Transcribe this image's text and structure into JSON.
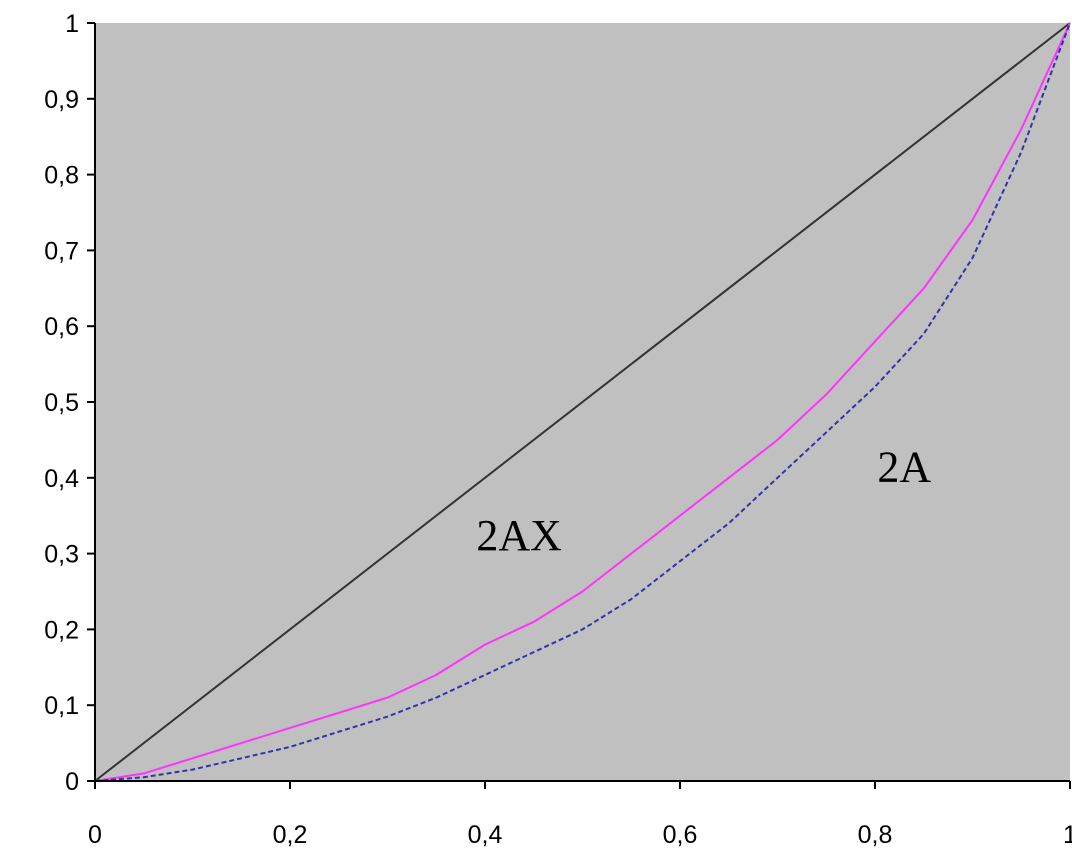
{
  "chart_data": {
    "type": "line",
    "title": "",
    "xlabel": "",
    "ylabel": "",
    "xlim": [
      0,
      1
    ],
    "ylim": [
      0,
      1
    ],
    "x_ticks": [
      "0",
      "0,2",
      "0,4",
      "0,6",
      "0,8",
      "1"
    ],
    "y_ticks": [
      "0",
      "0,1",
      "0,2",
      "0,3",
      "0,4",
      "0,5",
      "0,6",
      "0,7",
      "0,8",
      "0,9",
      "1"
    ],
    "grid": false,
    "legend": "none",
    "background_color": "#c0c0c0",
    "series": [
      {
        "color": "#333333",
        "style": "solid",
        "points": [
          [
            0,
            0
          ],
          [
            1,
            1
          ]
        ]
      },
      {
        "color": "#ff33ff",
        "style": "solid",
        "points": [
          [
            0,
            0
          ],
          [
            0.05,
            0.01
          ],
          [
            0.1,
            0.03
          ],
          [
            0.15,
            0.05
          ],
          [
            0.2,
            0.07
          ],
          [
            0.25,
            0.09
          ],
          [
            0.3,
            0.11
          ],
          [
            0.35,
            0.14
          ],
          [
            0.4,
            0.18
          ],
          [
            0.45,
            0.21
          ],
          [
            0.5,
            0.25
          ],
          [
            0.55,
            0.3
          ],
          [
            0.6,
            0.35
          ],
          [
            0.65,
            0.4
          ],
          [
            0.7,
            0.45
          ],
          [
            0.75,
            0.51
          ],
          [
            0.8,
            0.58
          ],
          [
            0.85,
            0.65
          ],
          [
            0.9,
            0.74
          ],
          [
            0.95,
            0.86
          ],
          [
            1,
            1
          ]
        ]
      },
      {
        "color": "#3333aa",
        "style": "dashed",
        "points": [
          [
            0,
            0
          ],
          [
            0.05,
            0.005
          ],
          [
            0.1,
            0.015
          ],
          [
            0.15,
            0.03
          ],
          [
            0.2,
            0.045
          ],
          [
            0.25,
            0.065
          ],
          [
            0.3,
            0.085
          ],
          [
            0.35,
            0.11
          ],
          [
            0.4,
            0.14
          ],
          [
            0.45,
            0.17
          ],
          [
            0.5,
            0.2
          ],
          [
            0.55,
            0.24
          ],
          [
            0.6,
            0.29
          ],
          [
            0.65,
            0.34
          ],
          [
            0.7,
            0.4
          ],
          [
            0.75,
            0.46
          ],
          [
            0.8,
            0.52
          ],
          [
            0.85,
            0.59
          ],
          [
            0.9,
            0.69
          ],
          [
            0.95,
            0.83
          ],
          [
            1,
            1
          ]
        ]
      }
    ],
    "annotations": [
      {
        "text": "2AX",
        "x": 0.435,
        "y": 0.305
      },
      {
        "text": "2A",
        "x": 0.83,
        "y": 0.395
      }
    ]
  }
}
